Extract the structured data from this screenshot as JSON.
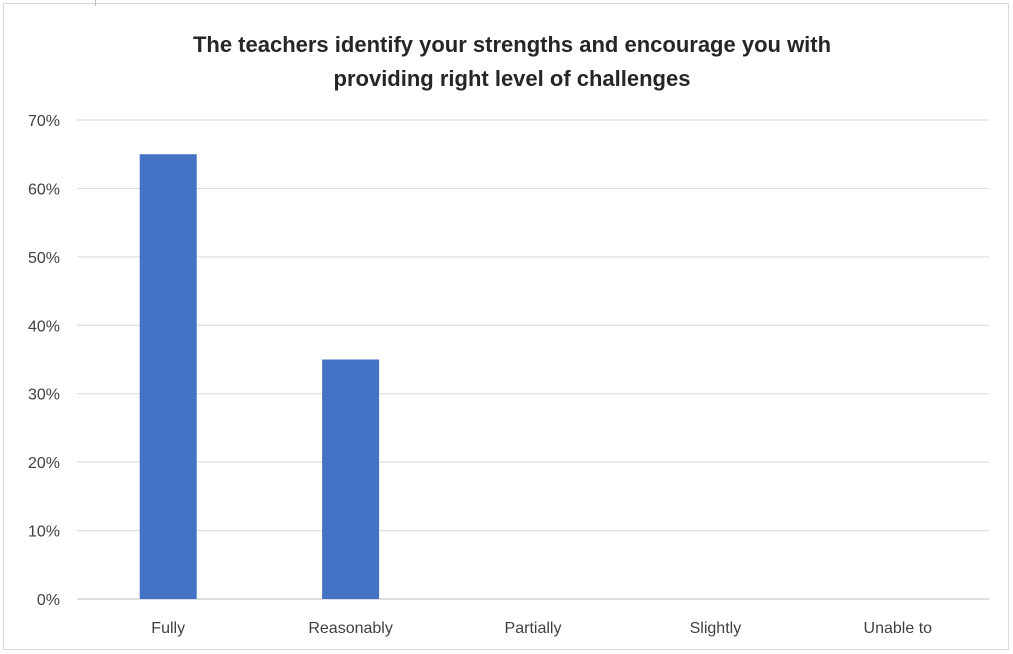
{
  "chart_data": {
    "type": "bar",
    "title_lines": [
      "The teachers identify your strengths and encourage you with",
      "providing right level of challenges"
    ],
    "categories": [
      "Fully",
      "Reasonably",
      "Partially",
      "Slightly",
      "Unable to"
    ],
    "values": [
      0.65,
      0.35,
      0,
      0,
      0
    ],
    "ylim": [
      0,
      0.7
    ],
    "y_ticks": [
      "0%",
      "10%",
      "20%",
      "30%",
      "40%",
      "50%",
      "60%",
      "70%"
    ],
    "xlabel": "",
    "ylabel": "",
    "grid": true,
    "legend": "none",
    "bar_color": "#4472c4"
  }
}
